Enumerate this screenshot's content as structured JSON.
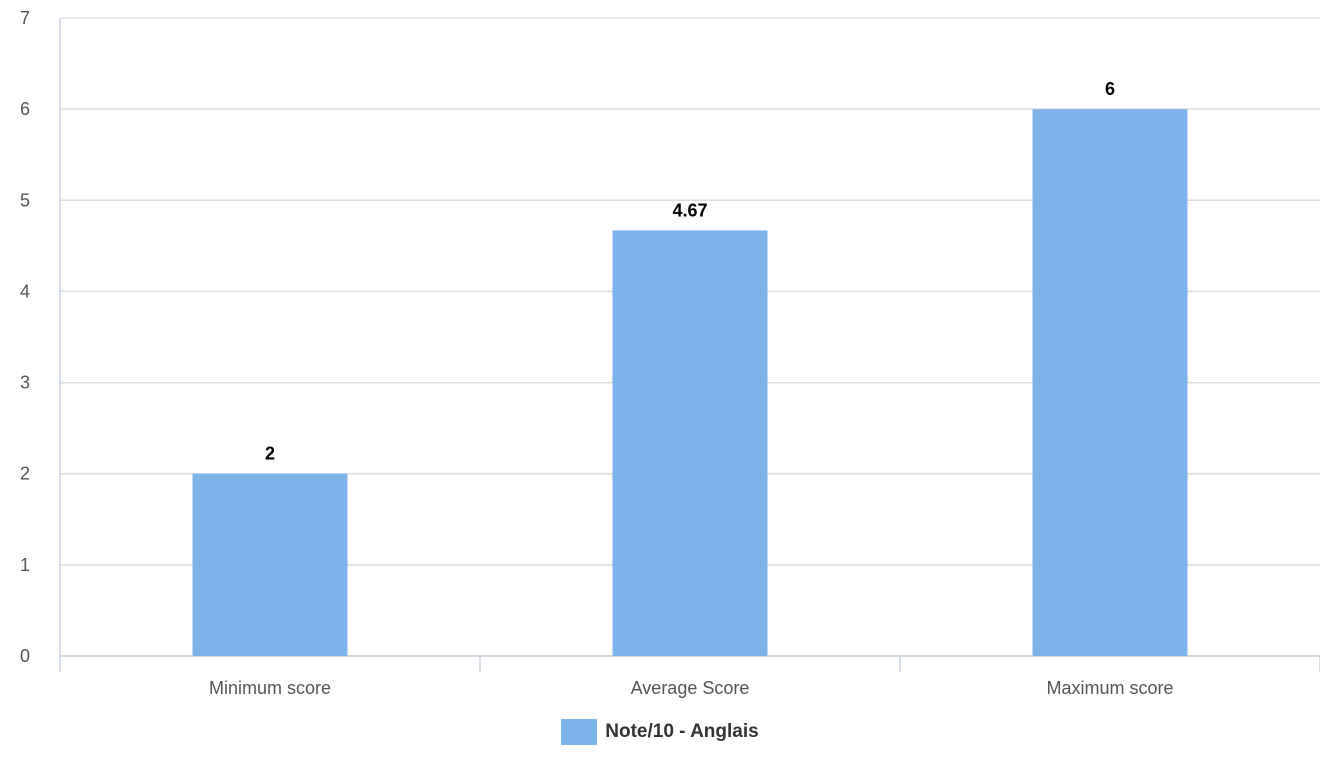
{
  "chart_data": {
    "type": "bar",
    "categories": [
      "Minimum score",
      "Average Score",
      "Maximum score"
    ],
    "series": [
      {
        "name": "Note/10 - Anglais",
        "values": [
          2,
          4.67,
          6
        ],
        "color": "#7cb4ea"
      }
    ],
    "data_labels": [
      "2",
      "4.67",
      "6"
    ],
    "y_ticks": [
      0,
      1,
      2,
      3,
      4,
      5,
      6,
      7
    ],
    "ylim": [
      0,
      7
    ],
    "grid": true,
    "legend_position": "bottom-center"
  },
  "legend": {
    "label": "Note/10 - Anglais",
    "color": "#7cb4ea"
  }
}
